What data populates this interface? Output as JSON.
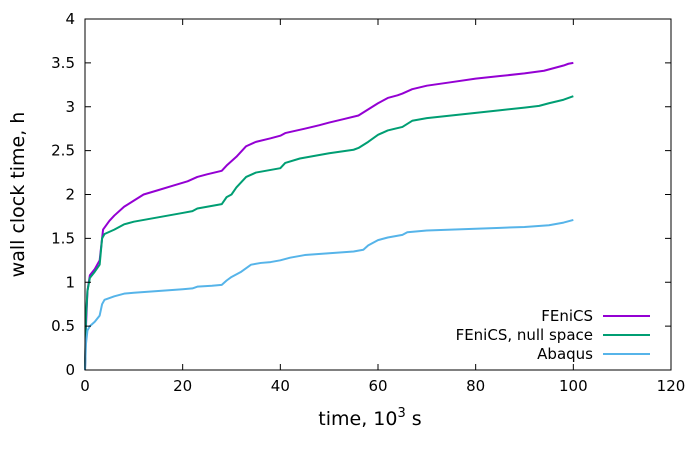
{
  "chart_data": {
    "type": "line",
    "title": "",
    "xlabel": {
      "prefix": "time, 10",
      "sup": "3",
      "suffix": " s"
    },
    "ylabel": "wall clock time, h",
    "xlim": [
      0,
      120
    ],
    "ylim": [
      0,
      4
    ],
    "xticks": [
      0,
      20,
      40,
      60,
      80,
      100,
      120
    ],
    "yticks": [
      0,
      0.5,
      1,
      1.5,
      2,
      2.5,
      3,
      3.5,
      4
    ],
    "ytick_labels": [
      "0",
      "0.5",
      "1",
      "1.5",
      "2",
      "2.5",
      "3",
      "3.5",
      "4"
    ],
    "grid": false,
    "legend_position": "bottom-right",
    "series": [
      {
        "name": "FEniCS",
        "color": "#9400d3",
        "points": [
          [
            0,
            0
          ],
          [
            0.2,
            0.5
          ],
          [
            0.5,
            0.9
          ],
          [
            1,
            1.08
          ],
          [
            2,
            1.15
          ],
          [
            2.5,
            1.2
          ],
          [
            3,
            1.25
          ],
          [
            3.7,
            1.6
          ],
          [
            5,
            1.7
          ],
          [
            6,
            1.76
          ],
          [
            8,
            1.86
          ],
          [
            10,
            1.93
          ],
          [
            12,
            2.0
          ],
          [
            15,
            2.05
          ],
          [
            18,
            2.1
          ],
          [
            21,
            2.15
          ],
          [
            23,
            2.2
          ],
          [
            25,
            2.23
          ],
          [
            28,
            2.27
          ],
          [
            29,
            2.33
          ],
          [
            30,
            2.38
          ],
          [
            31,
            2.43
          ],
          [
            33,
            2.55
          ],
          [
            35,
            2.6
          ],
          [
            38,
            2.64
          ],
          [
            40,
            2.67
          ],
          [
            41,
            2.7
          ],
          [
            45,
            2.75
          ],
          [
            48,
            2.79
          ],
          [
            50,
            2.82
          ],
          [
            53,
            2.86
          ],
          [
            56,
            2.9
          ],
          [
            58,
            2.97
          ],
          [
            60,
            3.04
          ],
          [
            62,
            3.1
          ],
          [
            64,
            3.13
          ],
          [
            65,
            3.15
          ],
          [
            67,
            3.2
          ],
          [
            70,
            3.24
          ],
          [
            75,
            3.28
          ],
          [
            80,
            3.32
          ],
          [
            85,
            3.35
          ],
          [
            90,
            3.38
          ],
          [
            94,
            3.41
          ],
          [
            96,
            3.44
          ],
          [
            98,
            3.47
          ],
          [
            99,
            3.49
          ],
          [
            100,
            3.5
          ]
        ]
      },
      {
        "name": "FEniCS, null space",
        "color": "#009e73",
        "points": [
          [
            0,
            0
          ],
          [
            0.2,
            0.6
          ],
          [
            0.5,
            0.9
          ],
          [
            1,
            1.05
          ],
          [
            2,
            1.12
          ],
          [
            3,
            1.2
          ],
          [
            3.5,
            1.5
          ],
          [
            4,
            1.55
          ],
          [
            6,
            1.6
          ],
          [
            8,
            1.66
          ],
          [
            10,
            1.69
          ],
          [
            15,
            1.74
          ],
          [
            20,
            1.79
          ],
          [
            22,
            1.81
          ],
          [
            23,
            1.84
          ],
          [
            25,
            1.86
          ],
          [
            28,
            1.89
          ],
          [
            29,
            1.97
          ],
          [
            30,
            2.0
          ],
          [
            31,
            2.08
          ],
          [
            33,
            2.2
          ],
          [
            35,
            2.25
          ],
          [
            38,
            2.28
          ],
          [
            40,
            2.3
          ],
          [
            41,
            2.36
          ],
          [
            44,
            2.41
          ],
          [
            48,
            2.45
          ],
          [
            50,
            2.47
          ],
          [
            55,
            2.51
          ],
          [
            56,
            2.53
          ],
          [
            58,
            2.6
          ],
          [
            60,
            2.68
          ],
          [
            62,
            2.73
          ],
          [
            65,
            2.77
          ],
          [
            67,
            2.84
          ],
          [
            70,
            2.87
          ],
          [
            75,
            2.9
          ],
          [
            80,
            2.93
          ],
          [
            85,
            2.96
          ],
          [
            90,
            2.99
          ],
          [
            93,
            3.01
          ],
          [
            95,
            3.04
          ],
          [
            98,
            3.08
          ],
          [
            100,
            3.12
          ]
        ]
      },
      {
        "name": "Abaqus",
        "color": "#56b4e9",
        "points": [
          [
            0,
            0
          ],
          [
            0.2,
            0.3
          ],
          [
            0.5,
            0.45
          ],
          [
            1,
            0.5
          ],
          [
            2,
            0.55
          ],
          [
            3,
            0.62
          ],
          [
            3.5,
            0.75
          ],
          [
            4,
            0.8
          ],
          [
            6,
            0.84
          ],
          [
            8,
            0.87
          ],
          [
            10,
            0.88
          ],
          [
            15,
            0.9
          ],
          [
            20,
            0.92
          ],
          [
            22,
            0.93
          ],
          [
            23,
            0.95
          ],
          [
            26,
            0.96
          ],
          [
            28,
            0.97
          ],
          [
            29,
            1.02
          ],
          [
            30,
            1.06
          ],
          [
            32,
            1.12
          ],
          [
            34,
            1.2
          ],
          [
            36,
            1.22
          ],
          [
            38,
            1.23
          ],
          [
            40,
            1.25
          ],
          [
            42,
            1.28
          ],
          [
            45,
            1.31
          ],
          [
            50,
            1.33
          ],
          [
            55,
            1.35
          ],
          [
            57,
            1.37
          ],
          [
            58,
            1.42
          ],
          [
            60,
            1.48
          ],
          [
            62,
            1.51
          ],
          [
            65,
            1.54
          ],
          [
            66,
            1.57
          ],
          [
            70,
            1.59
          ],
          [
            75,
            1.6
          ],
          [
            80,
            1.61
          ],
          [
            85,
            1.62
          ],
          [
            90,
            1.63
          ],
          [
            95,
            1.65
          ],
          [
            98,
            1.68
          ],
          [
            100,
            1.71
          ]
        ]
      }
    ]
  }
}
